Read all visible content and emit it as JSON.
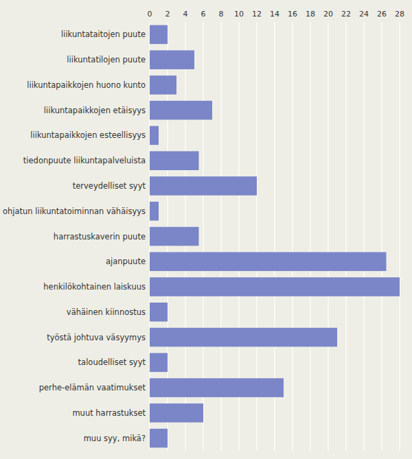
{
  "chart_data": {
    "type": "bar",
    "orientation": "horizontal",
    "categories": [
      "liikuntataitojen puute",
      "liikuntatilojen puute",
      "liikuntapaikkojen huono kunto",
      "liikuntapaikkojen etäisyys",
      "liikuntapaikkojen esteellisyys",
      "tiedonpuute liikuntapalveluista",
      "terveydelliset syyt",
      "ohjatun liikuntatoiminnan vähäisyys",
      "harrastuskaverin puute",
      "ajanpuute",
      "henkilökohtainen laiskuus",
      "vähäinen kiinnostus",
      "työstä johtuva väsyymys",
      "taloudelliset syyt",
      "perhe-elämän vaatimukset",
      "muut harrastukset",
      "muu syy, mikä?"
    ],
    "values": [
      2.0,
      5.0,
      3.0,
      7.0,
      1.0,
      5.5,
      12.0,
      1.0,
      5.5,
      26.5,
      28.0,
      2.0,
      21.0,
      2.0,
      15.0,
      6.0,
      2.0
    ],
    "color": "#7b86c8",
    "xlim": [
      0,
      28
    ],
    "xticks": [
      0,
      2,
      4,
      6,
      8,
      10,
      12,
      14,
      16,
      18,
      20,
      22,
      24,
      26,
      28
    ],
    "grid": true
  }
}
